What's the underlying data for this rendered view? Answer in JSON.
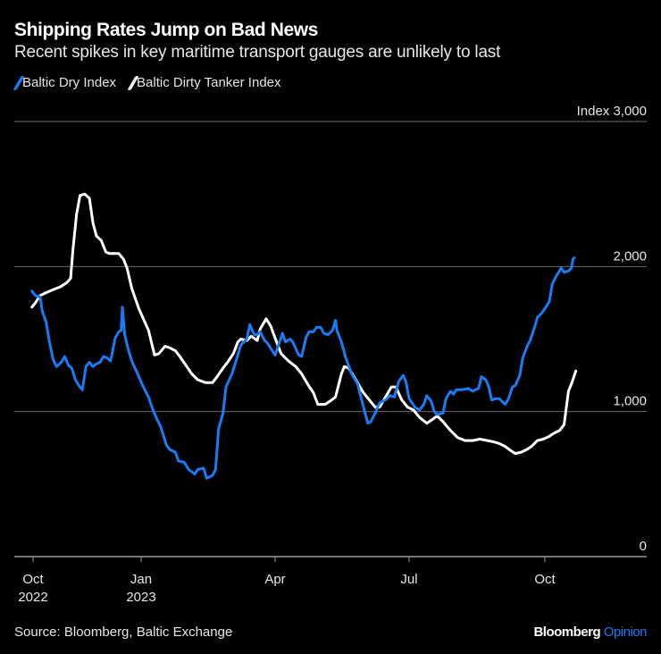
{
  "header": {
    "title": "Shipping Rates Jump on Bad News",
    "subtitle": "Recent spikes in key maritime transport gauges are unlikely to last"
  },
  "footer": {
    "source": "Source: Bloomberg, Baltic Exchange",
    "brand": "Bloomberg",
    "brand_accent": "Opinion"
  },
  "colors": {
    "dry": "#1a7cf4",
    "tanker": "#ffffff",
    "grid": "#6b6b6b",
    "background": "#000000"
  },
  "chart_data": {
    "type": "line",
    "title": "Shipping Rates Jump on Bad News",
    "subtitle": "Recent spikes in key maritime transport gauges are unlikely to last",
    "xlabel": "",
    "ylabel": "Index",
    "ylim": [
      0,
      3000
    ],
    "yticks": [
      0,
      1000,
      2000,
      3000
    ],
    "ytick_labels": [
      "0",
      "1,000",
      "2,000",
      "Index 3,000"
    ],
    "x_unit": "days since 2022-10-01",
    "xticks": [
      0,
      92,
      182,
      273,
      365
    ],
    "xtick_labels": [
      [
        "Oct",
        "2022"
      ],
      [
        "Jan",
        "2023"
      ],
      [
        "Apr",
        ""
      ],
      [
        "Jul",
        ""
      ],
      [
        "Oct",
        ""
      ]
    ],
    "grid": true,
    "legend_position": "top-left",
    "series": [
      {
        "name": "Baltic Dry Index",
        "color": "#1a7cf4",
        "points": [
          [
            -1,
            1830
          ],
          [
            2,
            1800
          ],
          [
            6,
            1790
          ],
          [
            8,
            1690
          ],
          [
            11,
            1620
          ],
          [
            14,
            1480
          ],
          [
            17,
            1360
          ],
          [
            20,
            1310
          ],
          [
            24,
            1340
          ],
          [
            27,
            1380
          ],
          [
            30,
            1320
          ],
          [
            33,
            1300
          ],
          [
            36,
            1220
          ],
          [
            39,
            1180
          ],
          [
            42,
            1150
          ],
          [
            45,
            1310
          ],
          [
            48,
            1340
          ],
          [
            51,
            1310
          ],
          [
            54,
            1330
          ],
          [
            57,
            1340
          ],
          [
            60,
            1380
          ],
          [
            63,
            1370
          ],
          [
            66,
            1350
          ],
          [
            70,
            1510
          ],
          [
            73,
            1550
          ],
          [
            75,
            1560
          ],
          [
            76,
            1720
          ],
          [
            78,
            1530
          ],
          [
            81,
            1430
          ],
          [
            84,
            1350
          ],
          [
            89,
            1260
          ],
          [
            93,
            1180
          ],
          [
            97,
            1100
          ],
          [
            100,
            1010
          ],
          [
            103,
            940
          ],
          [
            105,
            900
          ],
          [
            109,
            770
          ],
          [
            111,
            740
          ],
          [
            115,
            720
          ],
          [
            117,
            660
          ],
          [
            121,
            650
          ],
          [
            124,
            600
          ],
          [
            128,
            570
          ],
          [
            130,
            600
          ],
          [
            134,
            610
          ],
          [
            136,
            540
          ],
          [
            140,
            560
          ],
          [
            142,
            600
          ],
          [
            144,
            880
          ],
          [
            147,
            990
          ],
          [
            149,
            1170
          ],
          [
            153,
            1260
          ],
          [
            157,
            1390
          ],
          [
            159,
            1460
          ],
          [
            163,
            1500
          ],
          [
            165,
            1600
          ],
          [
            168,
            1530
          ],
          [
            170,
            1530
          ],
          [
            172,
            1550
          ],
          [
            175,
            1490
          ],
          [
            177,
            1470
          ],
          [
            180,
            1420
          ],
          [
            182,
            1390
          ],
          [
            184,
            1450
          ],
          [
            187,
            1540
          ],
          [
            189,
            1480
          ],
          [
            192,
            1500
          ],
          [
            194,
            1480
          ],
          [
            198,
            1390
          ],
          [
            200,
            1380
          ],
          [
            203,
            1510
          ],
          [
            205,
            1550
          ],
          [
            208,
            1550
          ],
          [
            210,
            1580
          ],
          [
            213,
            1580
          ],
          [
            215,
            1540
          ],
          [
            218,
            1530
          ],
          [
            221,
            1560
          ],
          [
            223,
            1630
          ],
          [
            224,
            1560
          ],
          [
            227,
            1480
          ],
          [
            230,
            1370
          ],
          [
            234,
            1260
          ],
          [
            238,
            1190
          ],
          [
            241,
            1070
          ],
          [
            245,
            920
          ],
          [
            247,
            930
          ],
          [
            250,
            990
          ],
          [
            253,
            1060
          ],
          [
            257,
            1080
          ],
          [
            260,
            1110
          ],
          [
            263,
            1100
          ],
          [
            266,
            1210
          ],
          [
            269,
            1250
          ],
          [
            271,
            1200
          ],
          [
            273,
            1090
          ],
          [
            277,
            1030
          ],
          [
            280,
            1010
          ],
          [
            283,
            1050
          ],
          [
            285,
            1110
          ],
          [
            288,
            1070
          ],
          [
            290,
            1000
          ],
          [
            292,
            980
          ],
          [
            296,
            990
          ],
          [
            298,
            1090
          ],
          [
            301,
            1140
          ],
          [
            303,
            1120
          ],
          [
            305,
            1150
          ],
          [
            309,
            1150
          ],
          [
            313,
            1160
          ],
          [
            316,
            1140
          ],
          [
            320,
            1160
          ],
          [
            322,
            1240
          ],
          [
            325,
            1220
          ],
          [
            327,
            1170
          ],
          [
            329,
            1080
          ],
          [
            332,
            1090
          ],
          [
            334,
            1090
          ],
          [
            338,
            1050
          ],
          [
            340,
            1080
          ],
          [
            343,
            1170
          ],
          [
            345,
            1180
          ],
          [
            348,
            1250
          ],
          [
            350,
            1370
          ],
          [
            353,
            1450
          ],
          [
            355,
            1490
          ],
          [
            358,
            1580
          ],
          [
            360,
            1650
          ],
          [
            363,
            1680
          ],
          [
            365,
            1710
          ],
          [
            368,
            1760
          ],
          [
            370,
            1880
          ],
          [
            373,
            1940
          ],
          [
            375,
            1970
          ],
          [
            376,
            1990
          ],
          [
            378,
            1960
          ],
          [
            381,
            1970
          ],
          [
            383,
            1990
          ],
          [
            384,
            2050
          ],
          [
            385,
            2060
          ]
        ]
      },
      {
        "name": "Baltic Dirty Tanker Index",
        "color": "#ffffff",
        "points": [
          [
            -1,
            1720
          ],
          [
            2,
            1750
          ],
          [
            6,
            1800
          ],
          [
            11,
            1820
          ],
          [
            17,
            1840
          ],
          [
            23,
            1860
          ],
          [
            29,
            1890
          ],
          [
            32,
            1920
          ],
          [
            34,
            2120
          ],
          [
            37,
            2360
          ],
          [
            40,
            2490
          ],
          [
            44,
            2500
          ],
          [
            48,
            2470
          ],
          [
            51,
            2300
          ],
          [
            54,
            2210
          ],
          [
            58,
            2180
          ],
          [
            62,
            2100
          ],
          [
            65,
            2090
          ],
          [
            69,
            2090
          ],
          [
            73,
            2090
          ],
          [
            77,
            2050
          ],
          [
            80,
            1990
          ],
          [
            84,
            1850
          ],
          [
            90,
            1710
          ],
          [
            97,
            1560
          ],
          [
            101,
            1390
          ],
          [
            104,
            1400
          ],
          [
            108,
            1450
          ],
          [
            111,
            1440
          ],
          [
            115,
            1420
          ],
          [
            118,
            1380
          ],
          [
            122,
            1320
          ],
          [
            126,
            1260
          ],
          [
            130,
            1220
          ],
          [
            135,
            1200
          ],
          [
            140,
            1200
          ],
          [
            143,
            1240
          ],
          [
            147,
            1300
          ],
          [
            150,
            1340
          ],
          [
            154,
            1400
          ],
          [
            157,
            1480
          ],
          [
            159,
            1500
          ],
          [
            163,
            1490
          ],
          [
            166,
            1520
          ],
          [
            170,
            1490
          ],
          [
            172,
            1570
          ],
          [
            176,
            1640
          ],
          [
            179,
            1590
          ],
          [
            183,
            1480
          ],
          [
            186,
            1400
          ],
          [
            191,
            1350
          ],
          [
            196,
            1310
          ],
          [
            200,
            1260
          ],
          [
            204,
            1190
          ],
          [
            208,
            1130
          ],
          [
            211,
            1050
          ],
          [
            216,
            1050
          ],
          [
            219,
            1070
          ],
          [
            223,
            1100
          ],
          [
            227,
            1260
          ],
          [
            229,
            1310
          ],
          [
            232,
            1300
          ],
          [
            235,
            1250
          ],
          [
            239,
            1180
          ],
          [
            242,
            1130
          ],
          [
            246,
            1080
          ],
          [
            250,
            1030
          ],
          [
            253,
            1030
          ],
          [
            257,
            1100
          ],
          [
            261,
            1170
          ],
          [
            264,
            1170
          ],
          [
            268,
            1080
          ],
          [
            272,
            1030
          ],
          [
            276,
            1010
          ],
          [
            280,
            960
          ],
          [
            285,
            920
          ],
          [
            288,
            940
          ],
          [
            292,
            970
          ],
          [
            296,
            930
          ],
          [
            301,
            870
          ],
          [
            306,
            820
          ],
          [
            311,
            800
          ],
          [
            316,
            800
          ],
          [
            321,
            810
          ],
          [
            326,
            800
          ],
          [
            331,
            790
          ],
          [
            334,
            780
          ],
          [
            338,
            760
          ],
          [
            342,
            730
          ],
          [
            345,
            710
          ],
          [
            349,
            720
          ],
          [
            353,
            740
          ],
          [
            356,
            760
          ],
          [
            360,
            800
          ],
          [
            364,
            810
          ],
          [
            368,
            830
          ],
          [
            371,
            850
          ],
          [
            375,
            870
          ],
          [
            378,
            910
          ],
          [
            381,
            1140
          ],
          [
            383,
            1190
          ],
          [
            386,
            1280
          ]
        ]
      }
    ]
  }
}
